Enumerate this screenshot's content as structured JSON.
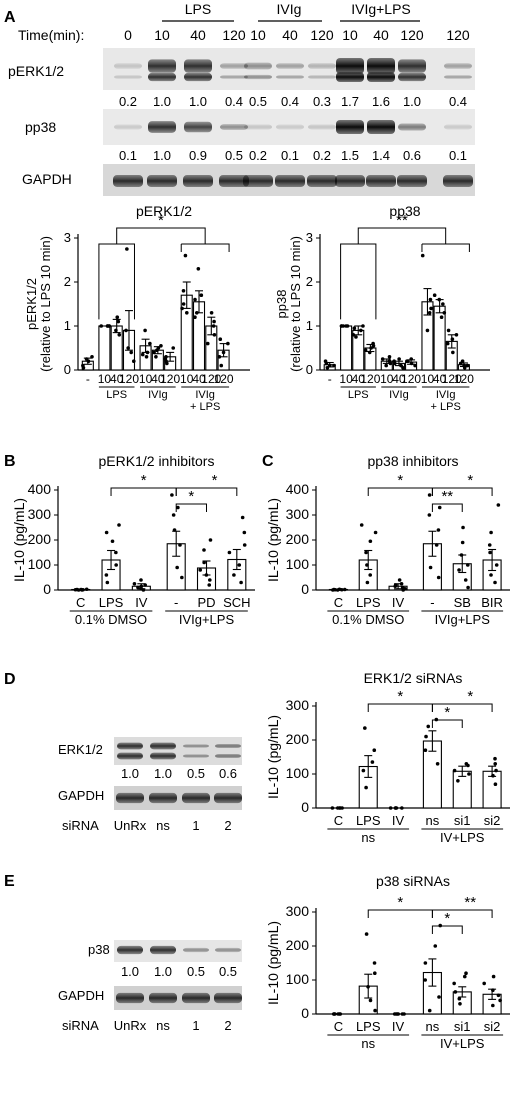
{
  "panel_letters": [
    "A",
    "B",
    "C",
    "D",
    "E"
  ],
  "panel_a": {
    "time_label": "Time(min):",
    "groups": [
      "LPS",
      "IVIg",
      "IVIg+LPS"
    ],
    "times": [
      "0",
      "10",
      "40",
      "120",
      "10",
      "40",
      "120",
      "10",
      "40",
      "120",
      "120"
    ],
    "blots": [
      "pERK1/2",
      "pp38",
      "GAPDH"
    ],
    "perk_values": [
      "0.2",
      "1.0",
      "1.0",
      "0.4",
      "0.5",
      "0.4",
      "0.3",
      "1.7",
      "1.6",
      "1.0",
      "0.4"
    ],
    "pp38_values": [
      "0.1",
      "1.0",
      "0.9",
      "0.5",
      "0.2",
      "0.1",
      "0.2",
      "1.5",
      "1.4",
      "0.6",
      "0.1"
    ]
  },
  "blot_d": {
    "labels": [
      "ERK1/2",
      "GAPDH"
    ],
    "values": [
      "1.0",
      "1.0",
      "0.5",
      "0.6"
    ],
    "sirna_label": "siRNA",
    "lanes": [
      "UnRx",
      "ns",
      "1",
      "2"
    ]
  },
  "blot_e": {
    "labels": [
      "p38",
      "GAPDH"
    ],
    "values": [
      "1.0",
      "1.0",
      "0.5",
      "0.5"
    ],
    "sirna_label": "siRNA",
    "lanes": [
      "UnRx",
      "ns",
      "1",
      "2"
    ]
  },
  "chart_data": [
    {
      "id": "A-perk",
      "type": "bar",
      "title": "pERK1/2",
      "ylabel": "pERK1/2\n(relative to LPS 10 min)",
      "ylim": [
        0,
        3
      ],
      "yticks": [
        "0",
        "1",
        "2",
        "3"
      ],
      "categories": [
        "-",
        "10",
        "40",
        "120",
        "10",
        "40",
        "120",
        "10",
        "40",
        "120",
        "120"
      ],
      "group_labels": [
        "LPS",
        "IVIg",
        "IVIg\n+ LPS"
      ],
      "values": [
        0.2,
        1.0,
        1.0,
        0.9,
        0.55,
        0.45,
        0.3,
        1.7,
        1.55,
        1.0,
        0.45
      ],
      "errors": [
        0.07,
        0,
        0.15,
        0.45,
        0.15,
        0.08,
        0.1,
        0.3,
        0.25,
        0.2,
        0.15
      ],
      "points": [
        [
          0.1,
          0.3,
          0.05,
          0.2,
          0.25
        ],
        [
          1,
          1,
          1,
          1,
          1
        ],
        [
          0.8,
          1.2,
          1.1,
          0.9
        ],
        [
          0.2,
          0.4,
          2.75,
          0.5,
          0.9
        ],
        [
          0.3,
          0.6,
          0.9,
          0.35,
          0.4
        ],
        [
          0.3,
          0.4,
          0.55,
          0.5,
          0.45
        ],
        [
          0.15,
          0.3,
          0.5,
          0.25,
          0.2
        ],
        [
          2.6,
          1.3,
          1.8,
          1.4,
          1.5
        ],
        [
          1.7,
          2.3,
          1.2,
          1.3,
          1.6
        ],
        [
          0.8,
          0.6,
          1.3,
          1.0,
          1.1
        ],
        [
          0.1,
          0.6,
          0.3,
          0.7,
          0.4
        ]
      ],
      "fills": [
        "#fff",
        "#fff",
        "#fff",
        "#fff",
        "#fff",
        "#fff",
        "#fff",
        "#fff",
        "#fff",
        "#fff",
        "#fff"
      ],
      "annotations": [
        "*"
      ]
    },
    {
      "id": "A-pp38",
      "type": "bar",
      "title": "pp38",
      "ylabel": "pp38\n(relative to LPS 10 min)",
      "ylim": [
        0,
        3
      ],
      "yticks": [
        "0",
        "1",
        "2",
        "3"
      ],
      "categories": [
        "-",
        "10",
        "40",
        "120",
        "10",
        "40",
        "120",
        "10",
        "40",
        "120",
        "120"
      ],
      "group_labels": [
        "LPS",
        "IVIg",
        "IVIg\n+ LPS"
      ],
      "values": [
        0.12,
        1.0,
        0.9,
        0.5,
        0.2,
        0.15,
        0.18,
        1.55,
        1.45,
        0.65,
        0.12
      ],
      "errors": [
        0.05,
        0,
        0.1,
        0.08,
        0.05,
        0.05,
        0.05,
        0.3,
        0.15,
        0.15,
        0.04
      ],
      "points": [
        [
          0.05,
          0.1,
          0.2,
          0.15,
          0.1
        ],
        [
          1,
          1,
          1,
          1,
          1
        ],
        [
          0.75,
          0.9,
          1.0,
          0.95,
          0.8
        ],
        [
          0.4,
          0.55,
          0.6,
          0.45,
          0.5
        ],
        [
          0.1,
          0.3,
          0.2,
          0.15,
          0.25
        ],
        [
          0.05,
          0.2,
          0.15,
          0.1,
          0.25
        ],
        [
          0.1,
          0.15,
          0.2,
          0.25,
          0.2
        ],
        [
          2.6,
          1.3,
          1.4,
          1.6,
          0.9
        ],
        [
          1.3,
          1.6,
          1.2,
          1.5,
          1.7
        ],
        [
          0.4,
          0.9,
          0.7,
          0.6,
          0.8
        ],
        [
          0.05,
          0.15,
          0.1,
          0.2,
          0.1
        ]
      ],
      "fills": [
        "#fff",
        "#fff",
        "#fff",
        "#fff",
        "#fff",
        "#fff",
        "#fff",
        "#fff",
        "#fff",
        "#fff",
        "#fff"
      ],
      "annotations": [
        "**"
      ]
    },
    {
      "id": "B",
      "type": "bar",
      "title": "pERK1/2 inhibitors",
      "ylabel": "IL-10 (pg/mL)",
      "ylim": [
        0,
        400
      ],
      "yticks": [
        "0",
        "100",
        "200",
        "300",
        "400"
      ],
      "categories": [
        "C",
        "LPS",
        "IV",
        "-",
        "PD",
        "SCH"
      ],
      "group_labels": [
        "0.1% DMSO",
        "IVIg+LPS"
      ],
      "values": [
        2,
        120,
        15,
        185,
        88,
        122
      ],
      "errors": [
        1,
        38,
        10,
        50,
        28,
        40
      ],
      "points": [
        [
          0,
          1,
          2,
          0,
          3,
          1,
          2
        ],
        [
          30,
          60,
          100,
          150,
          195,
          230,
          260
        ],
        [
          0,
          5,
          10,
          20,
          40,
          15,
          25
        ],
        [
          50,
          90,
          180,
          240,
          300,
          330,
          380
        ],
        [
          20,
          40,
          60,
          80,
          110,
          160,
          200
        ],
        [
          30,
          60,
          100,
          150,
          180,
          230,
          290
        ]
      ],
      "fills": [
        "#fff",
        "#fff",
        "#fff",
        "#fff",
        "#fff",
        "#fff"
      ],
      "annotations": [
        "*",
        "*",
        "*"
      ]
    },
    {
      "id": "C",
      "type": "bar",
      "title": "pp38 inhibitors",
      "ylabel": "IL-10 (pg/mL)",
      "ylim": [
        0,
        400
      ],
      "yticks": [
        "0",
        "100",
        "200",
        "300",
        "400"
      ],
      "categories": [
        "C",
        "LPS",
        "IV",
        "-",
        "SB",
        "BIR"
      ],
      "group_labels": [
        "0.1% DMSO",
        "IVIg+LPS"
      ],
      "values": [
        2,
        120,
        15,
        185,
        105,
        120
      ],
      "errors": [
        1,
        38,
        10,
        50,
        35,
        42
      ],
      "points": [
        [
          0,
          1,
          2,
          0,
          3,
          1,
          2
        ],
        [
          30,
          60,
          100,
          150,
          195,
          230,
          260
        ],
        [
          0,
          5,
          10,
          20,
          40,
          15,
          25
        ],
        [
          50,
          90,
          180,
          240,
          300,
          330,
          380
        ],
        [
          10,
          40,
          80,
          100,
          140,
          190,
          250
        ],
        [
          30,
          60,
          100,
          150,
          180,
          230,
          340
        ]
      ],
      "fills": [
        "#fff",
        "#fff",
        "#fff",
        "#fff",
        "#fff",
        "#fff"
      ],
      "annotations": [
        "*",
        "**",
        "*"
      ]
    },
    {
      "id": "D",
      "type": "bar",
      "title": "ERK1/2 siRNAs",
      "ylabel": "IL-10 (pg/mL)",
      "ylim": [
        0,
        300
      ],
      "yticks": [
        "0",
        "100",
        "200",
        "300"
      ],
      "categories": [
        "C",
        "LPS",
        "IV",
        "ns",
        "si1",
        "si2"
      ],
      "group_labels": [
        "ns",
        "IV+LPS"
      ],
      "values": [
        0,
        122,
        0,
        197,
        108,
        108
      ],
      "errors": [
        0,
        32,
        0,
        30,
        15,
        15
      ],
      "points": [
        [
          0,
          0,
          0,
          0,
          0
        ],
        [
          60,
          110,
          135,
          170,
          235
        ],
        [
          0,
          0,
          0,
          0,
          0
        ],
        [
          130,
          170,
          210,
          240,
          260
        ],
        [
          80,
          100,
          110,
          125,
          130
        ],
        [
          70,
          95,
          110,
          130,
          145
        ]
      ],
      "fills": [
        "#fff",
        "#fff",
        "#fff",
        "#fff",
        "#fff",
        "#fff"
      ],
      "annotations": [
        "*",
        "*",
        "*"
      ]
    },
    {
      "id": "E",
      "type": "bar",
      "title": "p38 siRNAs",
      "ylabel": "IL-10 (pg/mL)",
      "ylim": [
        0,
        300
      ],
      "yticks": [
        "0",
        "100",
        "200",
        "300"
      ],
      "categories": [
        "C",
        "LPS",
        "IV",
        "ns",
        "si1",
        "si2"
      ],
      "group_labels": [
        "ns",
        "IV+LPS"
      ],
      "values": [
        0,
        82,
        0,
        122,
        65,
        58
      ],
      "errors": [
        0,
        35,
        0,
        40,
        15,
        15
      ],
      "points": [
        [
          0,
          0,
          0,
          0,
          0,
          0
        ],
        [
          10,
          40,
          80,
          120,
          150,
          235
        ],
        [
          0,
          0,
          0,
          0,
          0,
          0
        ],
        [
          10,
          50,
          100,
          150,
          200,
          260
        ],
        [
          30,
          45,
          65,
          90,
          110,
          120
        ],
        [
          25,
          40,
          55,
          70,
          90,
          110
        ]
      ],
      "fills": [
        "#fff",
        "#fff",
        "#fff",
        "#fff",
        "#fff",
        "#fff"
      ],
      "annotations": [
        "*",
        "*",
        "**"
      ]
    }
  ]
}
